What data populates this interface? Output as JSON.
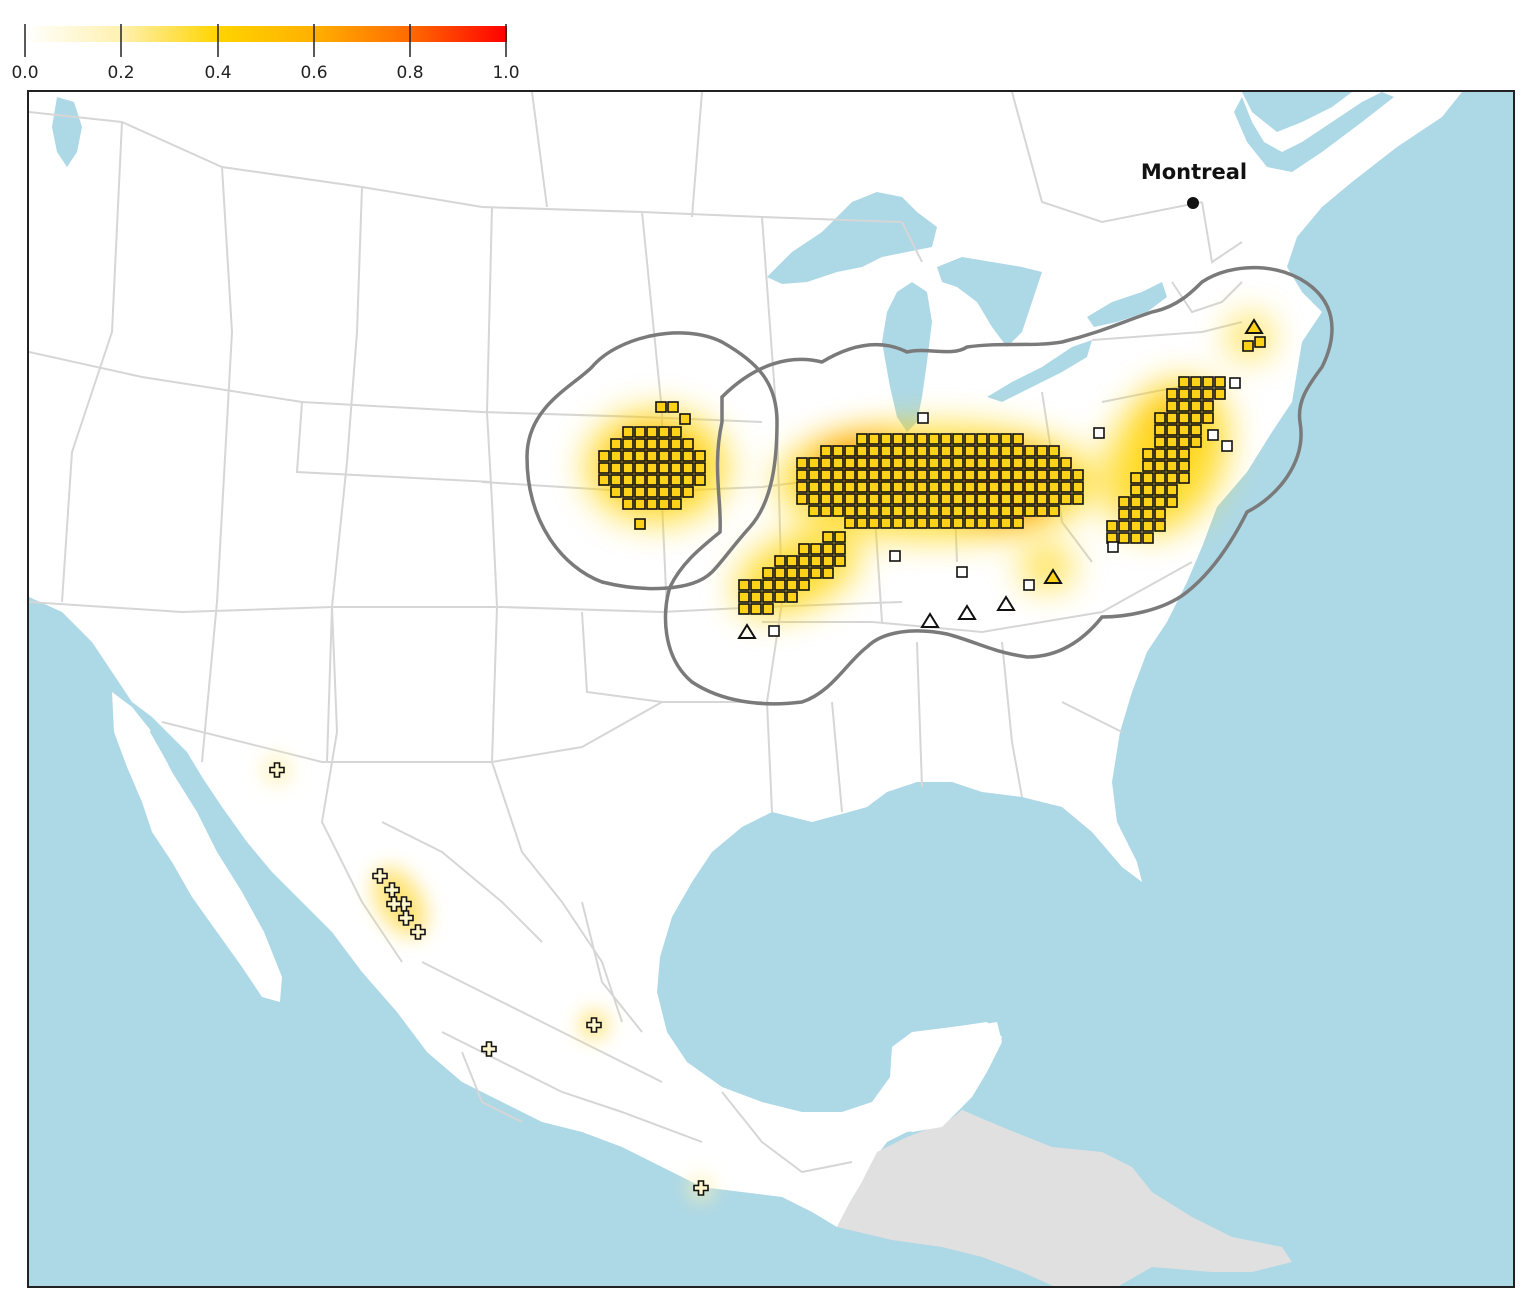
{
  "legend": {
    "ticks": [
      "0.0",
      "0.2",
      "0.4",
      "0.6",
      "0.8",
      "1.0"
    ],
    "color_stops": [
      "#ffffff",
      "#fff1b0",
      "#ffd400",
      "#ff8c00",
      "#ff0000"
    ]
  },
  "city": {
    "name": "Montreal"
  },
  "colors": {
    "water": "#add8e6",
    "land": "#ffffff",
    "other_land": "#e0e0e0",
    "borders": "#d6d6d6",
    "range_outline": "#7a7a7a",
    "marker_fill": "#ffd21a",
    "marker_stroke": "#111111"
  },
  "marker_icons": [
    "square-icon",
    "triangle-icon",
    "cross-icon"
  ]
}
